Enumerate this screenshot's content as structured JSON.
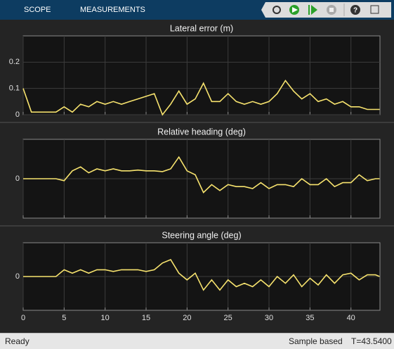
{
  "toolbar": {
    "tabs": [
      "SCOPE",
      "MEASUREMENTS"
    ]
  },
  "chart_data": [
    {
      "type": "line",
      "title": "Lateral error (m)",
      "color": "#f7e36e",
      "x": [
        0,
        1,
        2,
        3,
        4,
        5,
        6,
        7,
        8,
        9,
        10,
        11,
        12,
        13,
        14,
        15,
        16,
        17,
        18,
        19,
        20,
        21,
        22,
        23,
        24,
        25,
        26,
        27,
        28,
        29,
        30,
        31,
        32,
        33,
        34,
        35,
        36,
        37,
        38,
        39,
        40,
        41,
        42,
        43,
        43.5
      ],
      "values": [
        0.1,
        0.01,
        0.01,
        0.01,
        0.01,
        0.03,
        0.01,
        0.04,
        0.03,
        0.05,
        0.04,
        0.05,
        0.04,
        0.05,
        0.06,
        0.07,
        0.08,
        0.0,
        0.04,
        0.09,
        0.04,
        0.06,
        0.12,
        0.05,
        0.05,
        0.08,
        0.05,
        0.04,
        0.05,
        0.04,
        0.05,
        0.08,
        0.13,
        0.09,
        0.06,
        0.08,
        0.05,
        0.06,
        0.04,
        0.05,
        0.03,
        0.03,
        0.02,
        0.02,
        0.02
      ],
      "xlim": [
        0,
        43.54
      ],
      "xticks": [
        0,
        5,
        10,
        15,
        20,
        25,
        30,
        35,
        40
      ],
      "ylim": [
        0,
        0.3
      ],
      "yticks": [
        0,
        0.1,
        0.2
      ],
      "grid": true
    },
    {
      "type": "line",
      "title": "Relative heading (deg)",
      "color": "#f7e36e",
      "x": [
        0,
        1,
        2,
        3,
        4,
        5,
        6,
        7,
        8,
        9,
        10,
        11,
        12,
        13,
        14,
        15,
        16,
        17,
        18,
        19,
        20,
        21,
        22,
        23,
        24,
        25,
        26,
        27,
        28,
        29,
        30,
        31,
        32,
        33,
        34,
        35,
        36,
        37,
        38,
        39,
        40,
        41,
        42,
        43,
        43.5
      ],
      "values": [
        0,
        0,
        0,
        0,
        0,
        -0.5,
        2,
        3,
        1.5,
        2.5,
        2,
        2.5,
        2,
        2,
        2.2,
        2,
        2,
        1.8,
        2.5,
        5.5,
        2,
        1,
        -3.5,
        -1.5,
        -3,
        -1.5,
        -2,
        -2,
        -2.5,
        -1,
        -2.5,
        -1.5,
        -1.5,
        -2,
        0,
        -1.5,
        -1.5,
        0,
        -2,
        -1,
        -1,
        1,
        -0.5,
        0,
        0
      ],
      "xlim": [
        0,
        43.54
      ],
      "xticks": [
        0,
        5,
        10,
        15,
        20,
        25,
        30,
        35,
        40
      ],
      "ylim": [
        -10,
        10
      ],
      "yticks": [
        0
      ],
      "grid": true
    },
    {
      "type": "line",
      "title": "Steering angle (deg)",
      "color": "#f7e36e",
      "x": [
        0,
        1,
        2,
        3,
        4,
        5,
        6,
        7,
        8,
        9,
        10,
        11,
        12,
        13,
        14,
        15,
        16,
        17,
        18,
        19,
        20,
        21,
        22,
        23,
        24,
        25,
        26,
        27,
        28,
        29,
        30,
        31,
        32,
        33,
        34,
        35,
        36,
        37,
        38,
        39,
        40,
        41,
        42,
        43,
        43.5
      ],
      "values": [
        0,
        0,
        0,
        0,
        0,
        0.2,
        0.1,
        0.2,
        0.1,
        0.2,
        0.2,
        0.15,
        0.2,
        0.2,
        0.2,
        0.15,
        0.2,
        0.4,
        0.5,
        0.1,
        -0.1,
        0.1,
        -0.4,
        -0.1,
        -0.4,
        -0.1,
        -0.3,
        -0.2,
        -0.3,
        -0.1,
        -0.3,
        0,
        -0.2,
        0.05,
        -0.3,
        -0.05,
        -0.25,
        0.05,
        -0.2,
        0.05,
        0.1,
        -0.1,
        0.05,
        0.05,
        0
      ],
      "xlim": [
        0,
        43.54
      ],
      "xticks": [
        0,
        5,
        10,
        15,
        20,
        25,
        30,
        35,
        40
      ],
      "ylim": [
        -1,
        1
      ],
      "yticks": [
        0
      ],
      "grid": true
    }
  ],
  "status": {
    "state": "Ready",
    "mode": "Sample based",
    "time": "T=43.5400"
  }
}
